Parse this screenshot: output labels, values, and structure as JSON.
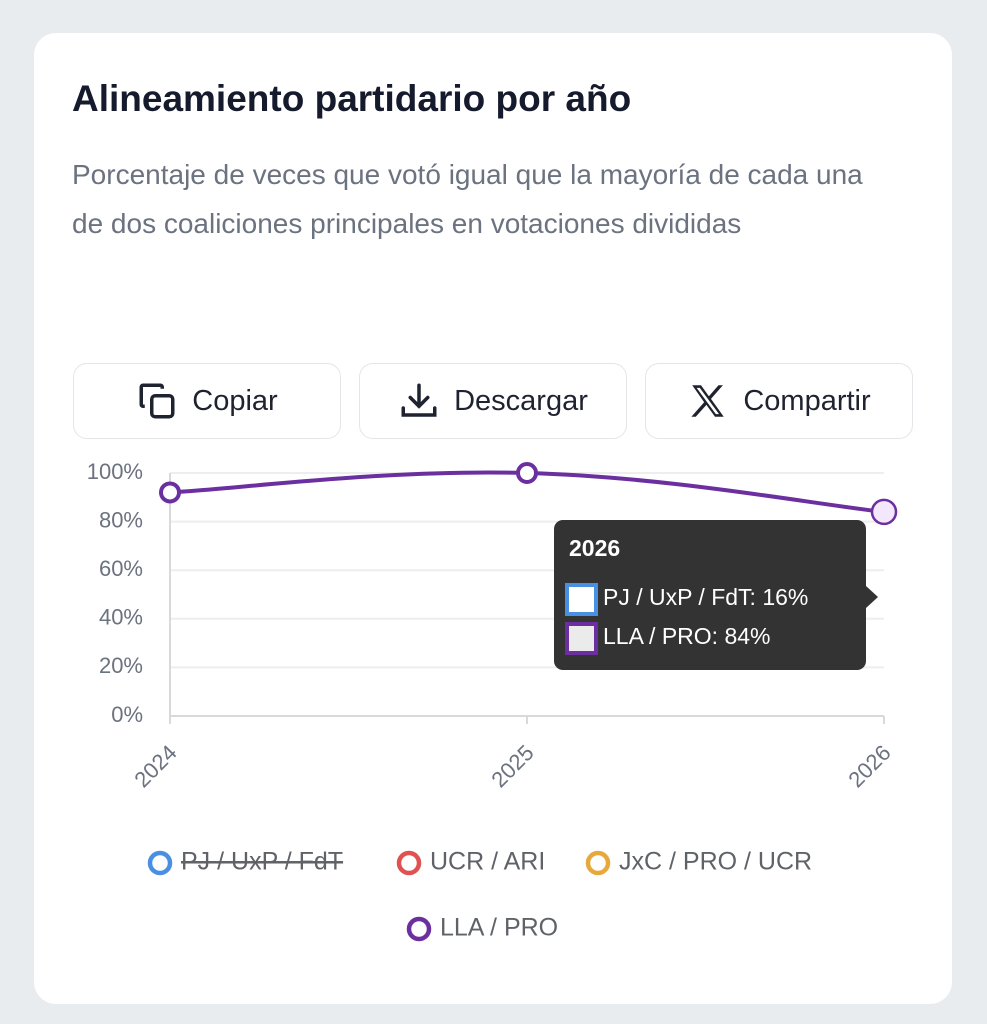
{
  "header": {
    "title": "Alineamiento partidario por año",
    "subtitle": "Porcentaje de veces que votó igual que la mayoría de cada una de dos coaliciones principales en votaciones divididas"
  },
  "buttons": [
    "Copiar",
    "Descargar",
    "Compartir"
  ],
  "chart_data": {
    "type": "line",
    "categories": [
      "2024",
      "2025",
      "2026"
    ],
    "series": [
      {
        "name": "PJ / UxP / FdT",
        "color": "#4a90e2",
        "hidden": true,
        "values": [
          null,
          null,
          null
        ]
      },
      {
        "name": "UCR / ARI",
        "color": "#e05252",
        "values": [
          null,
          null,
          null
        ]
      },
      {
        "name": "JxC / PRO / UCR",
        "color": "#e8a93c",
        "values": [
          null,
          null,
          null
        ]
      },
      {
        "name": "LLA / PRO",
        "color": "#6b2fa0",
        "values": [
          92,
          100,
          84
        ]
      }
    ],
    "ylim": [
      0,
      100
    ],
    "yticks": [
      {
        "value": 0,
        "label": "0%"
      },
      {
        "value": 20,
        "label": "20%"
      },
      {
        "value": 40,
        "label": "40%"
      },
      {
        "value": 60,
        "label": "60%"
      },
      {
        "value": 80,
        "label": "80%"
      },
      {
        "value": 100,
        "label": "100%"
      }
    ],
    "grid": true,
    "legend": "bottom",
    "tooltip": {
      "title": "2026",
      "items": [
        {
          "label": "PJ / UxP / FdT: 16%",
          "color": "#4a90e2"
        },
        {
          "label": "LLA / PRO: 84%",
          "color": "#6b2fa0"
        }
      ]
    }
  }
}
